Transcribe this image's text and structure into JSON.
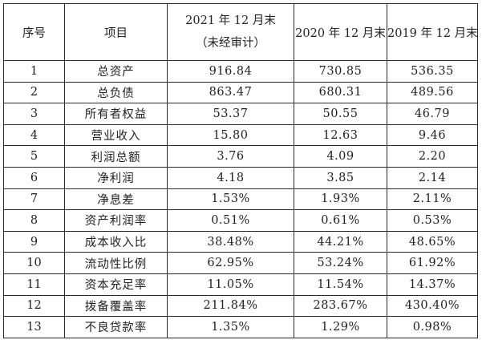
{
  "table": {
    "headers": {
      "seq": "序号",
      "item": "项目",
      "y2021_line1": "2021 年 12 月末",
      "y2021_line2": "（未经审计）",
      "y2020": "2020 年 12 月末",
      "y2019": "2019 年 12 月末"
    },
    "rows": [
      {
        "seq": "1",
        "item": "总资产",
        "y2021": "916.84",
        "y2020": "730.85",
        "y2019": "536.35"
      },
      {
        "seq": "2",
        "item": "总负债",
        "y2021": "863.47",
        "y2020": "680.31",
        "y2019": "489.56"
      },
      {
        "seq": "3",
        "item": "所有者权益",
        "y2021": "53.37",
        "y2020": "50.55",
        "y2019": "46.79"
      },
      {
        "seq": "4",
        "item": "营业收入",
        "y2021": "15.80",
        "y2020": "12.63",
        "y2019": "9.46"
      },
      {
        "seq": "5",
        "item": "利润总额",
        "y2021": "3.76",
        "y2020": "4.09",
        "y2019": "2.20"
      },
      {
        "seq": "6",
        "item": "净利润",
        "y2021": "4.18",
        "y2020": "3.85",
        "y2019": "2.14"
      },
      {
        "seq": "7",
        "item": "净息差",
        "y2021": "1.53%",
        "y2020": "1.93%",
        "y2019": "2.11%"
      },
      {
        "seq": "8",
        "item": "资产利润率",
        "y2021": "0.51%",
        "y2020": "0.61%",
        "y2019": "0.53%"
      },
      {
        "seq": "9",
        "item": "成本收入比",
        "y2021": "38.48%",
        "y2020": "44.21%",
        "y2019": "48.65%"
      },
      {
        "seq": "10",
        "item": "流动性比例",
        "y2021": "62.95%",
        "y2020": "53.24%",
        "y2019": "61.92%"
      },
      {
        "seq": "11",
        "item": "资本充足率",
        "y2021": "11.05%",
        "y2020": "11.54%",
        "y2019": "14.37%"
      },
      {
        "seq": "12",
        "item": "拨备覆盖率",
        "y2021": "211.84%",
        "y2020": "283.67%",
        "y2019": "430.40%"
      },
      {
        "seq": "13",
        "item": "不良贷款率",
        "y2021": "1.35%",
        "y2020": "1.29%",
        "y2019": "0.98%"
      }
    ]
  }
}
